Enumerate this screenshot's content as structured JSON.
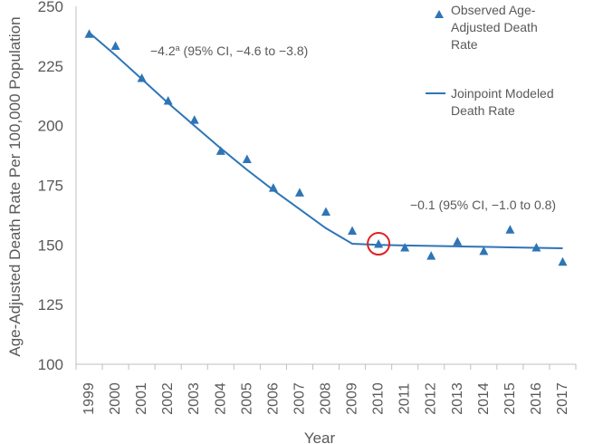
{
  "chart_data": {
    "type": "line",
    "ylabel": "Age-Adjusted Death Rate Per 100,000 Population",
    "xlabel": "Year",
    "ylim": [
      100,
      250
    ],
    "yticks": [
      "100",
      "125",
      "150",
      "175",
      "200",
      "225",
      "250"
    ],
    "x": [
      "1999",
      "2000",
      "2001",
      "2002",
      "2003",
      "2004",
      "2005",
      "2006",
      "2007",
      "2008",
      "2009",
      "2010",
      "2011",
      "2012",
      "2013",
      "2014",
      "2015",
      "2016",
      "2017"
    ],
    "series": [
      {
        "name": "Observed Age-Adjusted Death Rate",
        "style": "triangle-markers",
        "values": [
          238.5,
          233.5,
          220.0,
          210.5,
          202.5,
          189.5,
          186.0,
          174.0,
          172.0,
          164.0,
          156.0,
          150.5,
          149.0,
          145.5,
          151.5,
          147.5,
          156.5,
          149.0,
          143.0
        ]
      },
      {
        "name": "Joinpoint Modeled Death Rate",
        "style": "line",
        "values": [
          239.0,
          229.5,
          219.5,
          209.5,
          200.0,
          190.5,
          181.5,
          173.0,
          165.0,
          157.0,
          150.5,
          150.0,
          149.8,
          149.6,
          149.4,
          149.2,
          149.0,
          148.8,
          148.6
        ]
      }
    ],
    "highlight": {
      "x": "2010",
      "y": 150.5,
      "marker": "red-circle"
    },
    "annotations": [
      {
        "text": "−4.2",
        "superscript": "a",
        "rest": " (95% CI, −4.6 to −3.8)"
      },
      {
        "text": "−0.1 (95% CI, −1.0 to 0.8)"
      }
    ],
    "legend": {
      "placement": "top-right",
      "entries": [
        {
          "lines": [
            "Observed Age-",
            "Adjusted Death",
            "Rate"
          ]
        },
        {
          "lines": [
            "Joinpoint Modeled",
            "Death Rate"
          ]
        }
      ]
    },
    "colors": {
      "series": "#2e75b6",
      "highlight": "#e02020",
      "axis": "#bfbfbf",
      "text": "#595959"
    },
    "grid": false
  }
}
